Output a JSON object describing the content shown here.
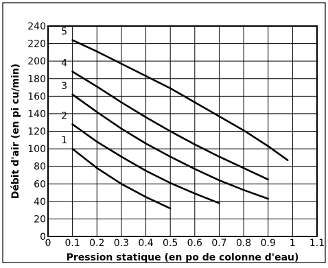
{
  "chart_data": {
    "type": "line",
    "xlabel": "Pression statique (en po de colonne d'eau)",
    "ylabel": "Débit d'air (en pi cu/min)",
    "xlim": [
      0,
      1.1
    ],
    "ylim": [
      0,
      240
    ],
    "x_ticks": [
      "0",
      "0.1",
      "0.2",
      "0.3",
      "0.4",
      "0.5",
      "0.6",
      "0.7",
      "0.8",
      "0.9",
      "1",
      "1.1"
    ],
    "y_ticks": [
      "0",
      "20",
      "40",
      "60",
      "80",
      "100",
      "120",
      "140",
      "160",
      "180",
      "200",
      "220",
      "240"
    ],
    "grid": true,
    "legend": "none",
    "series": [
      {
        "name": "1",
        "x": [
          0.1,
          0.2,
          0.3,
          0.4,
          0.5
        ],
        "y": [
          100,
          78,
          60,
          45,
          32
        ]
      },
      {
        "name": "2",
        "x": [
          0.1,
          0.2,
          0.3,
          0.4,
          0.5,
          0.6,
          0.7
        ],
        "y": [
          128,
          108,
          91,
          75,
          61,
          49,
          38
        ]
      },
      {
        "name": "3",
        "x": [
          0.1,
          0.2,
          0.3,
          0.4,
          0.5,
          0.6,
          0.7,
          0.8,
          0.9
        ],
        "y": [
          162,
          142,
          123,
          106,
          91,
          77,
          64,
          53,
          43
        ]
      },
      {
        "name": "4",
        "x": [
          0.1,
          0.2,
          0.3,
          0.4,
          0.5,
          0.6,
          0.7,
          0.8,
          0.9
        ],
        "y": [
          188,
          171,
          153,
          136,
          120,
          105,
          91,
          78,
          65
        ]
      },
      {
        "name": "5",
        "x": [
          0.1,
          0.2,
          0.3,
          0.4,
          0.5,
          0.6,
          0.7,
          0.8,
          0.9,
          0.98
        ],
        "y": [
          224,
          211,
          197,
          183,
          169,
          153,
          137,
          121,
          103,
          87
        ]
      }
    ]
  }
}
